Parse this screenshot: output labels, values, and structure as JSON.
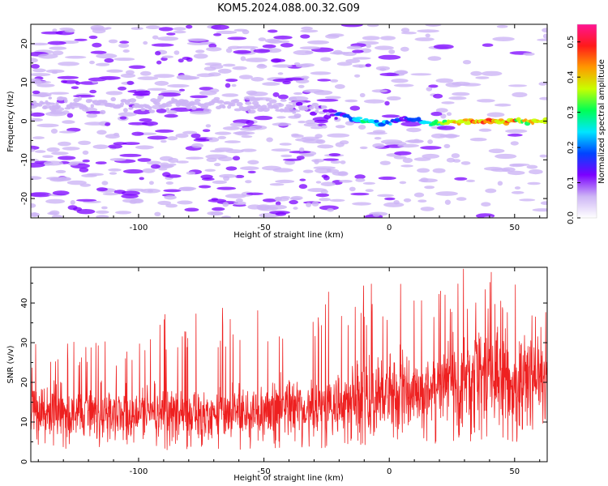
{
  "title": "KOM5.2024.088.00.32.G09",
  "chart_data": [
    {
      "type": "heatmap",
      "xlabel": "Height of straight line (km)",
      "ylabel": "Frequency (Hz)",
      "xlim": [
        -143,
        63
      ],
      "ylim": [
        -25,
        25
      ],
      "xticks": [
        -100,
        -50,
        0,
        50
      ],
      "yticks": [
        -20,
        -10,
        0,
        10,
        20
      ],
      "colorbar": {
        "label": "Normalized spectral amplitude",
        "range": [
          0,
          0.55
        ],
        "ticks": [
          0.0,
          0.1,
          0.2,
          0.3,
          0.4,
          0.5
        ],
        "tick_labels": [
          "0.0",
          "0.1",
          "0.2",
          "0.3",
          "0.4",
          "0.5"
        ],
        "colors": [
          "#ffffff",
          "#cdb5f5",
          "#7b00ff",
          "#0044ff",
          "#00e6ff",
          "#00ff55",
          "#c8ff00",
          "#ff9900",
          "#ff1a1a",
          "#ff1493"
        ]
      },
      "ridge": [
        {
          "x": -143,
          "y": 4
        },
        {
          "x": -120,
          "y": 4.5
        },
        {
          "x": -100,
          "y": 4
        },
        {
          "x": -80,
          "y": 4.5
        },
        {
          "x": -60,
          "y": 4
        },
        {
          "x": -40,
          "y": 3.5
        },
        {
          "x": -30,
          "y": 3
        },
        {
          "x": -20,
          "y": 2
        },
        {
          "x": -15,
          "y": 0.5
        },
        {
          "x": -10,
          "y": 0
        },
        {
          "x": -5,
          "y": -0.5
        },
        {
          "x": 0,
          "y": -0.5
        },
        {
          "x": 5,
          "y": 0.5
        },
        {
          "x": 10,
          "y": 0.5
        },
        {
          "x": 15,
          "y": -0.5
        },
        {
          "x": 20,
          "y": -0.5
        },
        {
          "x": 30,
          "y": 0
        },
        {
          "x": 40,
          "y": 0
        },
        {
          "x": 50,
          "y": 0
        },
        {
          "x": 63,
          "y": 0
        }
      ],
      "ridge_amplitude": [
        {
          "x": -143,
          "a": 0.07
        },
        {
          "x": -40,
          "a": 0.08
        },
        {
          "x": -25,
          "a": 0.1
        },
        {
          "x": -15,
          "a": 0.2
        },
        {
          "x": -10,
          "a": 0.3
        },
        {
          "x": -5,
          "a": 0.25
        },
        {
          "x": 0,
          "a": 0.2
        },
        {
          "x": 5,
          "a": 0.15
        },
        {
          "x": 10,
          "a": 0.22
        },
        {
          "x": 20,
          "a": 0.35
        },
        {
          "x": 30,
          "a": 0.45
        },
        {
          "x": 40,
          "a": 0.5
        },
        {
          "x": 50,
          "a": 0.45
        },
        {
          "x": 63,
          "a": 0.35
        }
      ]
    },
    {
      "type": "line",
      "xlabel": "Height of straight line (km)",
      "ylabel": "SNR (v/v)",
      "xlim": [
        -143,
        63
      ],
      "ylim": [
        0,
        49
      ],
      "xticks": [
        -100,
        -50,
        0,
        50
      ],
      "yticks": [
        0,
        10,
        20,
        30,
        40
      ],
      "series": [
        {
          "color": "#ee2020",
          "trend": [
            {
              "x": -143,
              "mean": 12
            },
            {
              "x": -100,
              "mean": 12
            },
            {
              "x": -60,
              "mean": 12
            },
            {
              "x": -40,
              "mean": 13
            },
            {
              "x": -20,
              "mean": 15
            },
            {
              "x": 0,
              "mean": 17
            },
            {
              "x": 20,
              "mean": 19
            },
            {
              "x": 40,
              "mean": 21
            },
            {
              "x": 63,
              "mean": 21
            }
          ],
          "envelope_upper": [
            {
              "x": -143,
              "y": 30
            },
            {
              "x": -100,
              "y": 31
            },
            {
              "x": -85,
              "y": 40
            },
            {
              "x": -50,
              "y": 38
            },
            {
              "x": -20,
              "y": 44
            },
            {
              "x": 12,
              "y": 48
            },
            {
              "x": 15,
              "y": 44
            },
            {
              "x": 30,
              "y": 49
            },
            {
              "x": 45,
              "y": 48
            },
            {
              "x": 63,
              "y": 40
            }
          ],
          "envelope_lower": [
            {
              "x": -143,
              "y": 3
            },
            {
              "x": -50,
              "y": 3
            },
            {
              "x": 0,
              "y": 4
            },
            {
              "x": 30,
              "y": 5
            },
            {
              "x": 63,
              "y": 4
            }
          ]
        }
      ]
    }
  ]
}
